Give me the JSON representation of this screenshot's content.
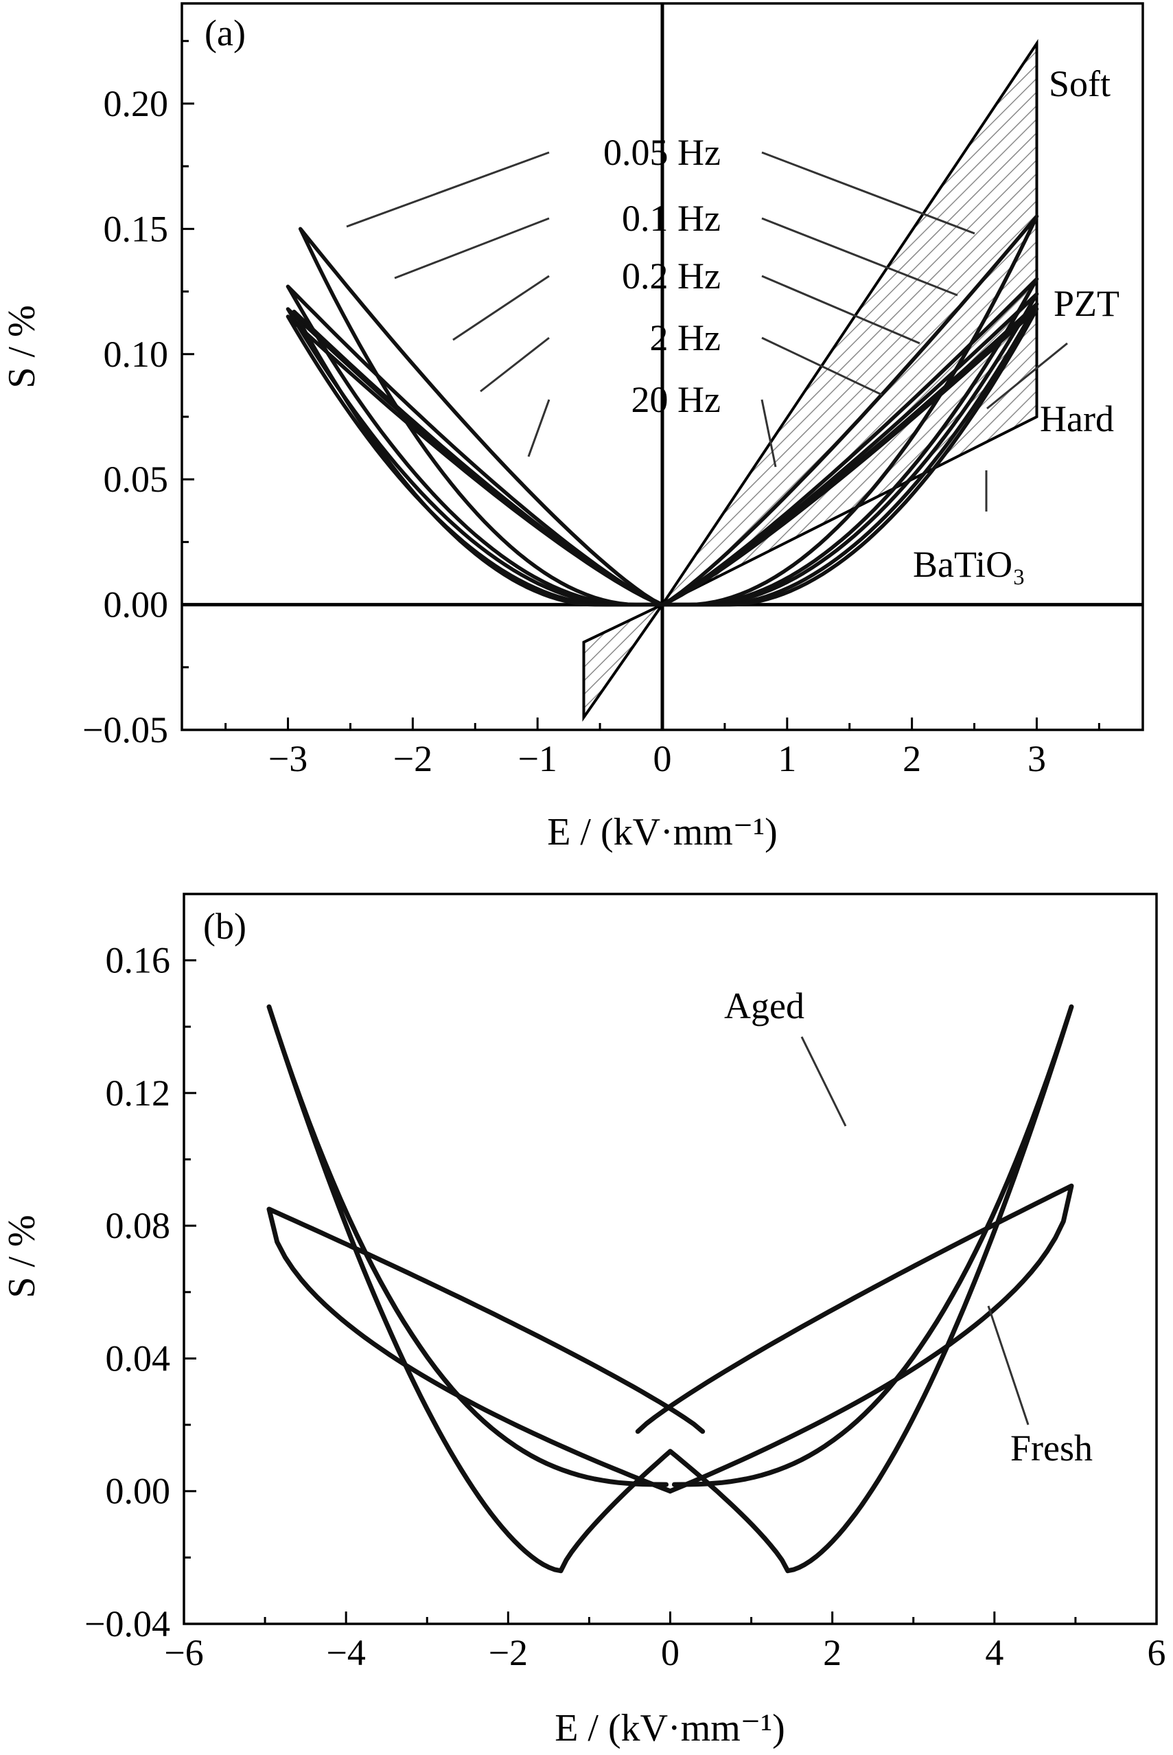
{
  "chart_data": [
    {
      "panel_label": "(a)",
      "type": "line",
      "xlabel": "E / (kV·mm⁻¹)",
      "ylabel": "S / %",
      "xlim": [
        -3.85,
        3.85
      ],
      "ylim": [
        -0.05,
        0.24
      ],
      "xticks": [
        "−3",
        "−2",
        "−1",
        "0",
        "1",
        "2",
        "3"
      ],
      "xtick_values": [
        -3,
        -2,
        -1,
        0,
        1,
        2,
        3
      ],
      "yticks": [
        "−0.05",
        "0.00",
        "0.05",
        "0.10",
        "0.15",
        "0.20"
      ],
      "ytick_values": [
        -0.05,
        0,
        0.05,
        0.1,
        0.15,
        0.2
      ],
      "series": [
        {
          "name": "0.05 Hz",
          "tip_minus": [
            -2.9,
            0.15
          ],
          "tip_plus": [
            3.0,
            0.155
          ],
          "coercive": 0.35
        },
        {
          "name": "0.1 Hz",
          "tip_minus": [
            -3.0,
            0.127
          ],
          "tip_plus": [
            3.0,
            0.13
          ],
          "coercive": 0.45
        },
        {
          "name": "0.2 Hz",
          "tip_minus": [
            -3.0,
            0.118
          ],
          "tip_plus": [
            3.0,
            0.124
          ],
          "coercive": 0.55
        },
        {
          "name": "2 Hz",
          "tip_minus": [
            -3.0,
            0.115
          ],
          "tip_plus": [
            3.0,
            0.12
          ],
          "coercive": 0.75
        },
        {
          "name": "20 Hz",
          "tip_minus": [
            -2.95,
            0.117
          ],
          "tip_plus": [
            3.0,
            0.118
          ],
          "coercive": 0.9
        }
      ],
      "envelope": {
        "soft_tip": [
          3.0,
          0.224
        ],
        "hard_tip": [
          3.0,
          0.075
        ],
        "bati_tip": [
          3.0,
          0.063
        ],
        "negative_tip": [
          -0.63,
          -0.045
        ],
        "negative_top": [
          -0.63,
          -0.015
        ]
      },
      "annotations": [
        "0.05 Hz",
        "0.1 Hz",
        "0.2 Hz",
        "2 Hz",
        "20 Hz",
        "Soft",
        "PZT",
        "Hard",
        "BaTiO₃"
      ]
    },
    {
      "panel_label": "(b)",
      "type": "line",
      "xlabel": "E / (kV·mm⁻¹)",
      "ylabel": "S / %",
      "xlim": [
        -6,
        6
      ],
      "ylim": [
        -0.04,
        0.18
      ],
      "xticks": [
        "−6",
        "−4",
        "−2",
        "0",
        "2",
        "4",
        "6"
      ],
      "xtick_values": [
        -6,
        -4,
        -2,
        0,
        2,
        4,
        6
      ],
      "yticks": [
        "−0.04",
        "0.00",
        "0.04",
        "0.08",
        "0.12",
        "0.16"
      ],
      "ytick_values": [
        -0.04,
        0,
        0.04,
        0.08,
        0.12,
        0.16
      ],
      "series": [
        {
          "name": "Aged",
          "tip_minus": [
            -4.95,
            0.146
          ],
          "tip_plus": [
            4.95,
            0.146
          ],
          "min_left": [
            -1.35,
            -0.024
          ],
          "min_right": [
            1.45,
            -0.024
          ]
        },
        {
          "name": "Fresh",
          "tip_minus": [
            -4.95,
            0.085
          ],
          "tip_plus": [
            4.95,
            0.092
          ]
        }
      ],
      "annotations": [
        "Aged",
        "Fresh"
      ]
    }
  ]
}
